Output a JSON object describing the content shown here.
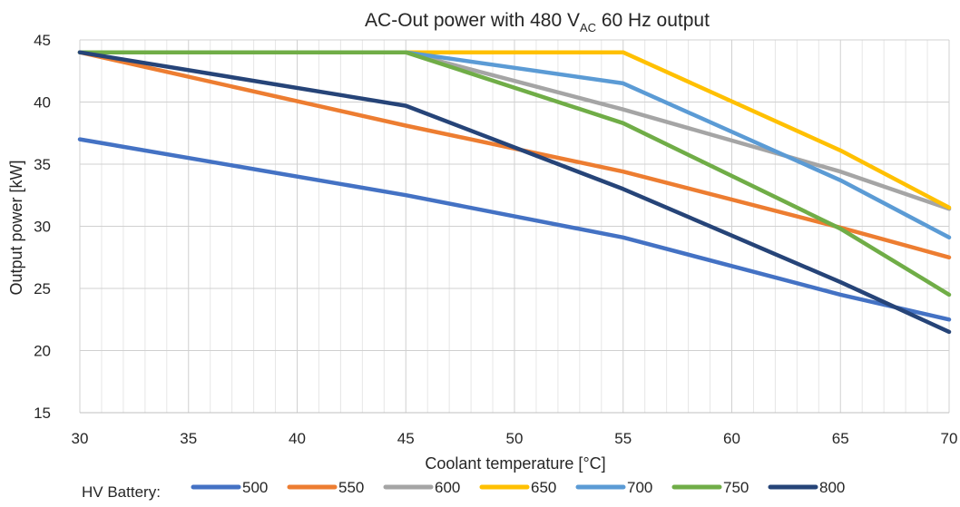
{
  "chart_data": {
    "type": "line",
    "title": {
      "prefix": "AC-Out power with 480 V",
      "subscript": "AC",
      "suffix": " 60 Hz output"
    },
    "xlabel": "Coolant temperature [°C]",
    "ylabel": "Output power [kW]",
    "xlim": [
      30,
      70
    ],
    "ylim": [
      15,
      45
    ],
    "x_ticks": [
      "30",
      "35",
      "40",
      "45",
      "50",
      "55",
      "60",
      "65",
      "70"
    ],
    "y_ticks": [
      "15",
      "20",
      "25",
      "30",
      "35",
      "40",
      "45"
    ],
    "grid": true,
    "legend_position": "bottom",
    "legend_title": "HV Battery:",
    "series": [
      {
        "name": "500",
        "color": "#4472C4",
        "x": [
          30,
          45,
          55,
          65,
          70
        ],
        "y": [
          37.0,
          32.5,
          29.1,
          24.5,
          22.5
        ]
      },
      {
        "name": "550",
        "color": "#ED7D31",
        "x": [
          30,
          45,
          55,
          65,
          70
        ],
        "y": [
          44.0,
          38.1,
          34.4,
          29.9,
          27.5
        ]
      },
      {
        "name": "600",
        "color": "#A5A5A5",
        "x": [
          30,
          45,
          55,
          65,
          70
        ],
        "y": [
          44.0,
          44.0,
          39.4,
          34.4,
          31.4
        ]
      },
      {
        "name": "650",
        "color": "#FFC000",
        "x": [
          30,
          45,
          55,
          65,
          70
        ],
        "y": [
          44.0,
          44.0,
          44.0,
          36.1,
          31.5
        ]
      },
      {
        "name": "700",
        "color": "#5B9BD5",
        "x": [
          30,
          45,
          55,
          65,
          70
        ],
        "y": [
          44.0,
          44.0,
          41.5,
          33.7,
          29.1
        ]
      },
      {
        "name": "750",
        "color": "#70AD47",
        "x": [
          30,
          45,
          55,
          65,
          70
        ],
        "y": [
          44.0,
          44.0,
          38.3,
          29.8,
          24.5
        ]
      },
      {
        "name": "800",
        "color": "#264478",
        "x": [
          30,
          45,
          55,
          65,
          70
        ],
        "y": [
          44.0,
          39.7,
          33.0,
          25.5,
          21.5
        ]
      }
    ]
  }
}
